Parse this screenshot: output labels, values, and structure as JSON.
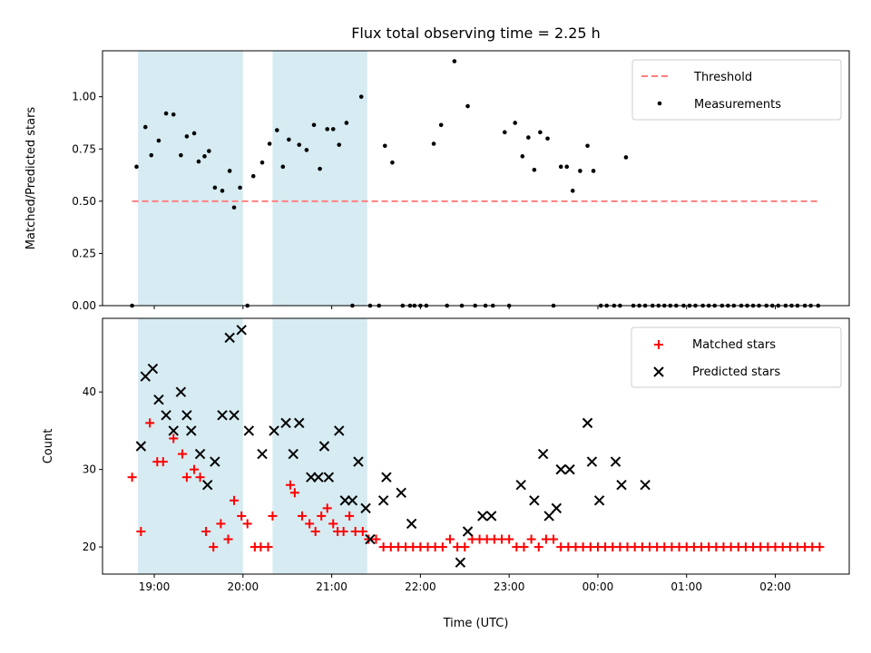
{
  "chart_data": [
    {
      "type": "scatter",
      "title": "Flux total observing time = 2.25 h",
      "xlabel": "",
      "ylabel": "Matched/Predicted stars",
      "xlim": [
        "18:25",
        "02:50"
      ],
      "ylim": [
        0,
        1.22
      ],
      "yticks": [
        "0.00",
        "0.25",
        "0.50",
        "0.75",
        "1.00"
      ],
      "ytick_values": [
        0,
        0.25,
        0.5,
        0.75,
        1.0
      ],
      "grid": false,
      "legend": "top-right",
      "shaded_intervals": [
        [
          "18:49",
          "20:00"
        ],
        [
          "20:20",
          "21:24"
        ]
      ],
      "shade_color": "#add8e6",
      "series": [
        {
          "name": "Threshold",
          "kind": "dashed-line",
          "color": "#ff7f7f",
          "x": [
            "18:45",
            "02:30"
          ],
          "y": [
            0.5,
            0.5
          ]
        },
        {
          "name": "Measurements",
          "kind": "points",
          "color": "#000000",
          "x": [
            "18:45",
            "18:48",
            "18:54",
            "18:58",
            "19:03",
            "19:08",
            "19:13",
            "19:18",
            "19:22",
            "19:27",
            "19:30",
            "19:34",
            "19:37",
            "19:41",
            "19:46",
            "19:51",
            "19:54",
            "19:58",
            "20:03",
            "20:07",
            "20:13",
            "20:18",
            "20:23",
            "20:27",
            "20:31",
            "20:38",
            "20:43",
            "20:48",
            "20:52",
            "20:57",
            "21:01",
            "21:05",
            "21:10",
            "21:14",
            "21:20",
            "21:26",
            "21:32",
            "21:36",
            "21:41",
            "21:48",
            "21:53",
            "21:56",
            "22:00",
            "22:04",
            "22:09",
            "22:14",
            "22:18",
            "22:23",
            "22:28",
            "22:32",
            "22:37",
            "22:44",
            "22:49",
            "22:57",
            "23:00",
            "23:04",
            "23:09",
            "23:13",
            "23:17",
            "23:21",
            "23:26",
            "23:30",
            "23:35",
            "23:39",
            "23:43",
            "23:48",
            "23:53",
            "23:57",
            "00:02",
            "00:06",
            "00:11",
            "00:15",
            "00:19",
            "00:24",
            "00:28",
            "00:32",
            "00:37",
            "00:41",
            "00:45",
            "00:49",
            "00:53",
            "00:58",
            "01:02",
            "01:06",
            "01:11",
            "01:15",
            "01:19",
            "01:24",
            "01:28",
            "01:32",
            "01:37",
            "01:41",
            "01:45",
            "01:49",
            "01:54",
            "01:58",
            "02:02",
            "02:07",
            "02:11",
            "02:15",
            "02:20",
            "02:24",
            "02:29"
          ],
          "y": [
            0.0,
            0.665,
            0.855,
            0.72,
            0.79,
            0.92,
            0.915,
            0.72,
            0.81,
            0.825,
            0.69,
            0.715,
            0.74,
            0.565,
            0.55,
            0.645,
            0.47,
            0.565,
            0.0,
            0.62,
            0.685,
            0.775,
            0.84,
            0.665,
            0.795,
            0.77,
            0.745,
            0.865,
            0.655,
            0.845,
            0.845,
            0.77,
            0.875,
            0.0,
            1.0,
            0.0,
            0.0,
            0.765,
            0.685,
            0.0,
            0.0,
            0.0,
            0.0,
            0.0,
            0.775,
            0.865,
            0.0,
            1.17,
            0.0,
            0.955,
            0.0,
            0.0,
            0.0,
            0.83,
            0.0,
            0.875,
            0.715,
            0.805,
            0.65,
            0.83,
            0.8,
            0.0,
            0.665,
            0.665,
            0.55,
            0.645,
            0.765,
            0.645,
            0.0,
            0.0,
            0.0,
            0.0,
            0.71,
            0.0,
            0.0,
            0.0,
            0.0,
            0.0,
            0.0,
            0.0,
            0.0,
            0.0,
            0.0,
            0.0,
            0.0,
            0.0,
            0.0,
            0.0,
            0.0,
            0.0,
            0.0,
            0.0,
            0.0,
            0.0,
            0.0,
            0.0,
            0.0,
            0.0,
            0.0,
            0.0,
            0.0,
            0.0,
            0.0
          ]
        }
      ]
    },
    {
      "type": "scatter",
      "title": "",
      "xlabel": "Time (UTC)",
      "ylabel": "Count",
      "xlim": [
        "18:25",
        "02:50"
      ],
      "ylim": [
        16.5,
        49.5
      ],
      "yticks": [
        "20",
        "30",
        "40"
      ],
      "ytick_values": [
        20,
        30,
        40
      ],
      "xticks": [
        "19:00",
        "20:00",
        "21:00",
        "22:00",
        "23:00",
        "00:00",
        "01:00",
        "02:00"
      ],
      "grid": false,
      "legend": "top-right",
      "shaded_intervals": [
        [
          "18:49",
          "20:00"
        ],
        [
          "20:20",
          "21:24"
        ]
      ],
      "shade_color": "#add8e6",
      "series": [
        {
          "name": "Matched stars",
          "kind": "plus",
          "color": "#ff0000",
          "x": [
            "18:45",
            "18:51",
            "18:57",
            "19:02",
            "19:06",
            "19:13",
            "19:19",
            "19:22",
            "19:27",
            "19:31",
            "19:35",
            "19:40",
            "19:45",
            "19:50",
            "19:54",
            "19:59",
            "20:03",
            "20:08",
            "20:12",
            "20:17",
            "20:20",
            "20:32",
            "20:35",
            "20:40",
            "20:45",
            "20:49",
            "20:53",
            "20:57",
            "21:01",
            "21:04",
            "21:08",
            "21:12",
            "21:16",
            "21:21",
            "21:25",
            "21:30",
            "21:35",
            "21:40",
            "21:45",
            "21:50",
            "21:55",
            "22:00",
            "22:05",
            "22:10",
            "22:15",
            "22:20",
            "22:25",
            "22:30",
            "22:35",
            "22:40",
            "22:45",
            "22:50",
            "22:55",
            "23:00",
            "23:05",
            "23:10",
            "23:15",
            "23:20",
            "23:25",
            "23:30",
            "23:35",
            "23:40",
            "23:45",
            "23:50",
            "23:55",
            "00:00",
            "00:05",
            "00:10",
            "00:15",
            "00:20",
            "00:25",
            "00:30",
            "00:35",
            "00:40",
            "00:45",
            "00:50",
            "00:55",
            "01:00",
            "01:05",
            "01:10",
            "01:15",
            "01:20",
            "01:25",
            "01:30",
            "01:35",
            "01:40",
            "01:45",
            "01:50",
            "01:55",
            "02:00",
            "02:05",
            "02:10",
            "02:15",
            "02:20",
            "02:25",
            "02:30"
          ],
          "y": [
            29,
            22,
            36,
            31,
            31,
            34,
            32,
            29,
            30,
            29,
            22,
            20,
            23,
            21,
            26,
            24,
            23,
            20,
            20,
            20,
            24,
            28,
            27,
            24,
            23,
            22,
            24,
            25,
            23,
            22,
            22,
            24,
            22,
            22,
            21,
            21,
            20,
            20,
            20,
            20,
            20,
            20,
            20,
            20,
            20,
            21,
            20,
            20,
            21,
            21,
            21,
            21,
            21,
            21,
            20,
            20,
            21,
            20,
            21,
            21,
            20,
            20,
            20,
            20,
            20,
            20,
            20,
            20,
            20,
            20,
            20,
            20,
            20,
            20,
            20,
            20,
            20,
            20,
            20,
            20,
            20,
            20,
            20,
            20,
            20,
            20,
            20,
            20,
            20,
            20,
            20,
            20,
            20,
            20,
            20,
            20
          ]
        },
        {
          "name": "Predicted stars",
          "kind": "x",
          "color": "#000000",
          "x": [
            "18:51",
            "18:54",
            "18:59",
            "19:03",
            "19:08",
            "19:13",
            "19:18",
            "19:22",
            "19:25",
            "19:31",
            "19:36",
            "19:41",
            "19:46",
            "19:51",
            "19:54",
            "19:59",
            "20:04",
            "20:13",
            "20:21",
            "20:29",
            "20:34",
            "20:38",
            "20:46",
            "20:51",
            "20:55",
            "20:58",
            "21:05",
            "21:09",
            "21:14",
            "21:18",
            "21:23",
            "21:26",
            "21:35",
            "21:37",
            "21:47",
            "21:54",
            "22:27",
            "22:32",
            "22:42",
            "22:48",
            "23:08",
            "23:17",
            "23:23",
            "23:27",
            "23:32",
            "23:35",
            "23:41",
            "23:53",
            "23:56",
            "24:01",
            "24:12",
            "24:16",
            "24:32"
          ],
          "y": [
            33,
            42,
            43,
            39,
            37,
            35,
            40,
            37,
            35,
            32,
            28,
            31,
            37,
            47,
            37,
            48,
            35,
            32,
            35,
            36,
            32,
            36,
            29,
            29,
            33,
            29,
            35,
            26,
            26,
            31,
            25,
            21,
            26,
            29,
            27,
            23,
            18,
            22,
            24,
            24,
            28,
            26,
            32,
            24,
            25,
            30,
            30,
            36,
            31,
            26,
            31,
            28,
            28
          ]
        }
      ]
    }
  ]
}
